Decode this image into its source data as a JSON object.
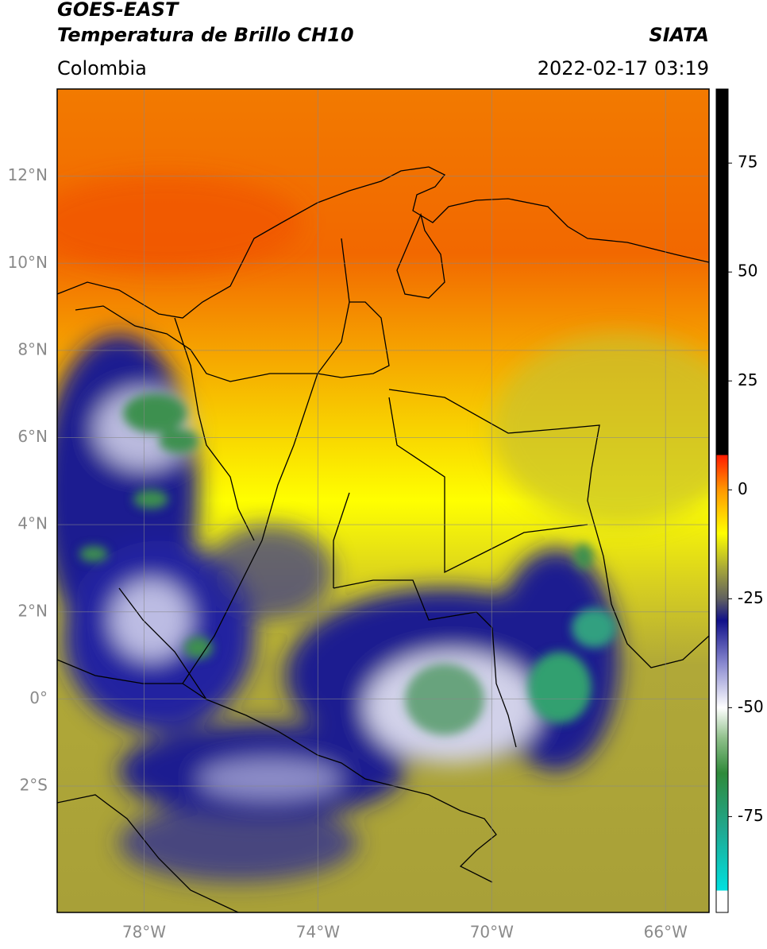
{
  "header": {
    "title": "GOES-EAST",
    "subtitle": "Temperatura de Brillo CH10",
    "source": "SIATA",
    "region": "Colombia",
    "datetime": "2022-02-17 03:19"
  },
  "map": {
    "lon_range": [
      -80,
      -65
    ],
    "lat_range": [
      -4.9,
      14
    ],
    "lon_ticks": [
      {
        "value": -78,
        "label": "78°W"
      },
      {
        "value": -74,
        "label": "74°W"
      },
      {
        "value": -70,
        "label": "70°W"
      },
      {
        "value": -66,
        "label": "66°W"
      }
    ],
    "lat_ticks": [
      {
        "value": 12,
        "label": "12°N"
      },
      {
        "value": 10,
        "label": "10°N"
      },
      {
        "value": 8,
        "label": "8°N"
      },
      {
        "value": 6,
        "label": "6°N"
      },
      {
        "value": 4,
        "label": "4°N"
      },
      {
        "value": 2,
        "label": "2°N"
      },
      {
        "value": 0,
        "label": "0°"
      },
      {
        "value": -2,
        "label": "2°S"
      }
    ],
    "grid": true
  },
  "colorbar": {
    "range": [
      -97,
      92
    ],
    "ticks": [
      75,
      50,
      25,
      0,
      -25,
      -50,
      -75
    ],
    "colormap": [
      {
        "value": -97,
        "color": "#ffffff"
      },
      {
        "value": -92,
        "color": "#ffffff"
      },
      {
        "value": -92,
        "color": "#00e0e0"
      },
      {
        "value": -78,
        "color": "#20a890"
      },
      {
        "value": -65,
        "color": "#2f8a3a"
      },
      {
        "value": -57,
        "color": "#8fc08a"
      },
      {
        "value": -50,
        "color": "#ffffff"
      },
      {
        "value": -40,
        "color": "#8a8ad0"
      },
      {
        "value": -30,
        "color": "#10108a"
      },
      {
        "value": -25,
        "color": "#606060"
      },
      {
        "value": -18,
        "color": "#a8a838"
      },
      {
        "value": -10,
        "color": "#ffff00"
      },
      {
        "value": 0,
        "color": "#ff9800"
      },
      {
        "value": 8,
        "color": "#ff1a00"
      },
      {
        "value": 8,
        "color": "#000000"
      },
      {
        "value": 92,
        "color": "#000000"
      }
    ]
  }
}
